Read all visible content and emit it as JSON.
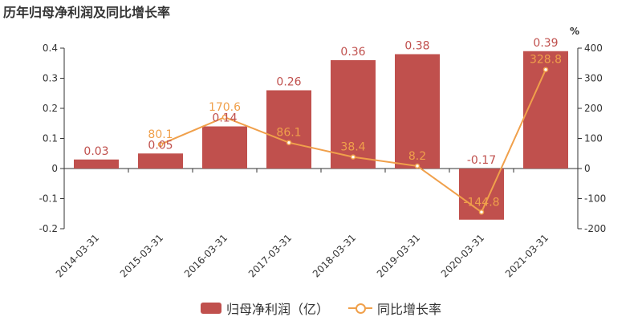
{
  "title": "历年归母净利润及同比增长率",
  "colors": {
    "bar": "#c0504d",
    "line": "#f0a04b",
    "axis": "#333333"
  },
  "legend": {
    "bar_label": "归母净利润（亿）",
    "line_label": "同比增长率"
  },
  "chart_data": {
    "type": "bar",
    "categories": [
      "2014-03-31",
      "2015-03-31",
      "2016-03-31",
      "2017-03-31",
      "2018-03-31",
      "2019-03-31",
      "2020-03-31",
      "2021-03-31"
    ],
    "series": [
      {
        "name": "归母净利润（亿）",
        "type": "bar",
        "axis": "left",
        "values": [
          0.03,
          0.05,
          0.14,
          0.26,
          0.36,
          0.38,
          -0.17,
          0.39
        ]
      },
      {
        "name": "同比增长率",
        "type": "line",
        "axis": "right",
        "values": [
          null,
          80.1,
          170.6,
          86.1,
          38.4,
          8.2,
          -144.8,
          328.8
        ]
      }
    ],
    "y_left": {
      "ylim": [
        -0.2,
        0.4
      ],
      "ticks": [
        -0.2,
        -0.1,
        0,
        0.1,
        0.2,
        0.3,
        0.4
      ]
    },
    "y_right": {
      "unit": "%",
      "ylim": [
        -200,
        400
      ],
      "ticks": [
        -200,
        -100,
        0,
        100,
        200,
        300,
        400
      ]
    },
    "grid": false,
    "legend_position": "bottom"
  }
}
